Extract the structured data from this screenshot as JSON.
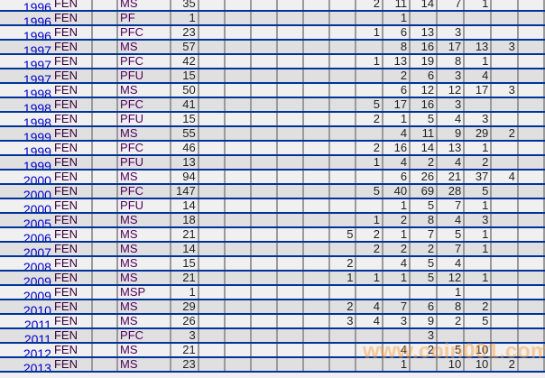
{
  "watermark": "www.coin001.com",
  "colors": {
    "row_light": "#f0f0f0",
    "row_dark": "#e0e0e0",
    "row_line": "#003399",
    "col_line": "#9a9a9a",
    "year_text": "#0000cc"
  },
  "rows": [
    {
      "year": "1996",
      "code": "FEN",
      "type": "MS",
      "total": "35",
      "cells": [
        "",
        "",
        "",
        "",
        "",
        "",
        "2",
        "11",
        "14",
        "7",
        "1",
        ""
      ]
    },
    {
      "year": "1996",
      "code": "FEN",
      "type": "PF",
      "total": "1",
      "cells": [
        "",
        "",
        "",
        "",
        "",
        "",
        "",
        "1",
        "",
        "",
        "",
        ""
      ]
    },
    {
      "year": "1996",
      "code": "FEN",
      "type": "PFC",
      "total": "23",
      "cells": [
        "",
        "",
        "",
        "",
        "",
        "",
        "1",
        "6",
        "13",
        "3",
        "",
        ""
      ]
    },
    {
      "year": "1997",
      "code": "FEN",
      "type": "MS",
      "total": "57",
      "cells": [
        "",
        "",
        "",
        "",
        "",
        "",
        "",
        "8",
        "16",
        "17",
        "13",
        "3"
      ]
    },
    {
      "year": "1997",
      "code": "FEN",
      "type": "PFC",
      "total": "42",
      "cells": [
        "",
        "",
        "",
        "",
        "",
        "",
        "1",
        "13",
        "19",
        "8",
        "1",
        ""
      ]
    },
    {
      "year": "1997",
      "code": "FEN",
      "type": "PFU",
      "total": "15",
      "cells": [
        "",
        "",
        "",
        "",
        "",
        "",
        "",
        "2",
        "6",
        "3",
        "4",
        ""
      ]
    },
    {
      "year": "1998",
      "code": "FEN",
      "type": "MS",
      "total": "50",
      "cells": [
        "",
        "",
        "",
        "",
        "",
        "",
        "",
        "6",
        "12",
        "12",
        "17",
        "3"
      ]
    },
    {
      "year": "1998",
      "code": "FEN",
      "type": "PFC",
      "total": "41",
      "cells": [
        "",
        "",
        "",
        "",
        "",
        "",
        "5",
        "17",
        "16",
        "3",
        "",
        ""
      ]
    },
    {
      "year": "1998",
      "code": "FEN",
      "type": "PFU",
      "total": "15",
      "cells": [
        "",
        "",
        "",
        "",
        "",
        "",
        "2",
        "1",
        "5",
        "4",
        "3",
        ""
      ]
    },
    {
      "year": "1999",
      "code": "FEN",
      "type": "MS",
      "total": "55",
      "cells": [
        "",
        "",
        "",
        "",
        "",
        "",
        "",
        "4",
        "11",
        "9",
        "29",
        "2"
      ]
    },
    {
      "year": "1999",
      "code": "FEN",
      "type": "PFC",
      "total": "46",
      "cells": [
        "",
        "",
        "",
        "",
        "",
        "",
        "2",
        "16",
        "14",
        "13",
        "1",
        ""
      ]
    },
    {
      "year": "1999",
      "code": "FEN",
      "type": "PFU",
      "total": "13",
      "cells": [
        "",
        "",
        "",
        "",
        "",
        "",
        "1",
        "4",
        "2",
        "4",
        "2",
        ""
      ]
    },
    {
      "year": "2000",
      "code": "FEN",
      "type": "MS",
      "total": "94",
      "cells": [
        "",
        "",
        "",
        "",
        "",
        "",
        "",
        "6",
        "26",
        "21",
        "37",
        "4"
      ]
    },
    {
      "year": "2000",
      "code": "FEN",
      "type": "PFC",
      "total": "147",
      "cells": [
        "",
        "",
        "",
        "",
        "",
        "",
        "5",
        "40",
        "69",
        "28",
        "5",
        ""
      ]
    },
    {
      "year": "2000",
      "code": "FEN",
      "type": "PFU",
      "total": "14",
      "cells": [
        "",
        "",
        "",
        "",
        "",
        "",
        "",
        "1",
        "5",
        "7",
        "1",
        ""
      ]
    },
    {
      "year": "2005",
      "code": "FEN",
      "type": "MS",
      "total": "18",
      "cells": [
        "",
        "",
        "",
        "",
        "",
        "",
        "1",
        "2",
        "8",
        "4",
        "3",
        ""
      ]
    },
    {
      "year": "2006",
      "code": "FEN",
      "type": "MS",
      "total": "21",
      "cells": [
        "",
        "",
        "",
        "",
        "",
        "5",
        "2",
        "1",
        "7",
        "5",
        "1",
        ""
      ]
    },
    {
      "year": "2007",
      "code": "FEN",
      "type": "MS",
      "total": "14",
      "cells": [
        "",
        "",
        "",
        "",
        "",
        "",
        "2",
        "2",
        "2",
        "7",
        "1",
        ""
      ]
    },
    {
      "year": "2008",
      "code": "FEN",
      "type": "MS",
      "total": "15",
      "cells": [
        "",
        "",
        "",
        "",
        "",
        "2",
        "",
        "4",
        "5",
        "4",
        "",
        ""
      ]
    },
    {
      "year": "2009",
      "code": "FEN",
      "type": "MS",
      "total": "21",
      "cells": [
        "",
        "",
        "",
        "",
        "",
        "1",
        "1",
        "1",
        "5",
        "12",
        "1",
        ""
      ]
    },
    {
      "year": "2009",
      "code": "FEN",
      "type": "MSP",
      "total": "1",
      "cells": [
        "",
        "",
        "",
        "",
        "",
        "",
        "",
        "",
        "",
        "1",
        "",
        ""
      ]
    },
    {
      "year": "2010",
      "code": "FEN",
      "type": "MS",
      "total": "29",
      "cells": [
        "",
        "",
        "",
        "",
        "",
        "2",
        "4",
        "7",
        "6",
        "8",
        "2",
        ""
      ]
    },
    {
      "year": "2011",
      "code": "FEN",
      "type": "MS",
      "total": "26",
      "cells": [
        "",
        "",
        "",
        "",
        "",
        "3",
        "4",
        "3",
        "9",
        "2",
        "5",
        ""
      ]
    },
    {
      "year": "2011",
      "code": "FEN",
      "type": "PFC",
      "total": "3",
      "cells": [
        "",
        "",
        "",
        "",
        "",
        "",
        "",
        "",
        "3",
        "",
        "",
        ""
      ]
    },
    {
      "year": "2012",
      "code": "FEN",
      "type": "MS",
      "total": "21",
      "cells": [
        "",
        "",
        "",
        "",
        "",
        "",
        "",
        "4",
        "2",
        "5",
        "10",
        ""
      ]
    },
    {
      "year": "2013",
      "code": "FEN",
      "type": "MS",
      "total": "23",
      "cells": [
        "",
        "",
        "",
        "",
        "",
        "",
        "",
        "1",
        "",
        "10",
        "10",
        "2"
      ]
    }
  ]
}
